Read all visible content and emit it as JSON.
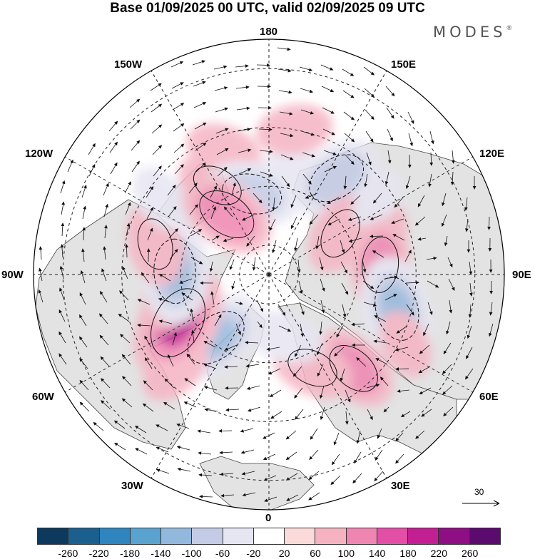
{
  "title": "Base 01/09/2025 00 UTC, valid 02/09/2025 09 UTC",
  "brand": "MODES",
  "brand_mark": "®",
  "longitude_labels": {
    "top": "180",
    "bottom": "0",
    "left": "90W",
    "right": "90E",
    "upper_left_1": "150W",
    "upper_left_2": "120W",
    "lower_left_1": "60W",
    "lower_left_2": "30W",
    "upper_right_1": "150E",
    "upper_right_2": "120E",
    "lower_right_1": "60E",
    "lower_right_2": "30E"
  },
  "reference_vector": {
    "label": "30"
  },
  "colorbar": {
    "colors": [
      "#0d3a5c",
      "#1b5f8f",
      "#2f85bd",
      "#5aa3d1",
      "#93b8dd",
      "#c3cbe5",
      "#e6e5f2",
      "#ffffff",
      "#fbdada",
      "#f5b3c2",
      "#ef85b1",
      "#e24fa6",
      "#c21f92",
      "#8e0e83",
      "#5b0a6e"
    ],
    "ticks": [
      "-260",
      "-220",
      "-180",
      "-140",
      "-100",
      "-60",
      "-20",
      "20",
      "60",
      "100",
      "140",
      "180",
      "220",
      "260"
    ]
  },
  "anomalies": [
    {
      "lon": -160,
      "lat": 45,
      "v": 60
    },
    {
      "lon": 168,
      "lat": 55,
      "v": -60
    },
    {
      "lon": 145,
      "lat": 50,
      "v": -120
    },
    {
      "lon": 120,
      "lat": 62,
      "v": 80
    },
    {
      "lon": 108,
      "lat": 50,
      "v": 60
    },
    {
      "lon": 125,
      "lat": 45,
      "v": -20
    },
    {
      "lon": 95,
      "lat": 52,
      "v": 100
    },
    {
      "lon": 75,
      "lat": 45,
      "v": -140
    },
    {
      "lon": 63,
      "lat": 38,
      "v": 40
    },
    {
      "lon": 42,
      "lat": 47,
      "v": 100
    },
    {
      "lon": 25,
      "lat": 55,
      "v": 80
    },
    {
      "lon": 15,
      "lat": 68,
      "v": -60
    },
    {
      "lon": -40,
      "lat": 62,
      "v": -140
    },
    {
      "lon": -45,
      "lat": 45,
      "v": 60
    },
    {
      "lon": -62,
      "lat": 55,
      "v": 180
    },
    {
      "lon": -80,
      "lat": 55,
      "v": 60
    },
    {
      "lon": -92,
      "lat": 58,
      "v": -140
    },
    {
      "lon": -105,
      "lat": 50,
      "v": 80
    },
    {
      "lon": -125,
      "lat": 45,
      "v": -40
    },
    {
      "lon": -150,
      "lat": 55,
      "v": 80
    },
    {
      "lon": -168,
      "lat": 62,
      "v": -120
    },
    {
      "lon": -145,
      "lat": 65,
      "v": 120
    },
    {
      "lon": 170,
      "lat": 40,
      "v": 60
    }
  ],
  "wind_pattern": [
    {
      "lon": 145,
      "lat": 50,
      "dir": "ccw"
    },
    {
      "lon": -168,
      "lat": 62,
      "dir": "ccw"
    },
    {
      "lon": -92,
      "lat": 58,
      "dir": "ccw"
    },
    {
      "lon": -40,
      "lat": 62,
      "dir": "ccw"
    },
    {
      "lon": 75,
      "lat": 45,
      "dir": "ccw"
    },
    {
      "lon": 15,
      "lat": 68,
      "dir": "ccw"
    },
    {
      "lon": -62,
      "lat": 55,
      "dir": "cw"
    },
    {
      "lon": 95,
      "lat": 52,
      "dir": "cw"
    },
    {
      "lon": 42,
      "lat": 47,
      "dir": "cw"
    },
    {
      "lon": 120,
      "lat": 62,
      "dir": "cw"
    }
  ]
}
